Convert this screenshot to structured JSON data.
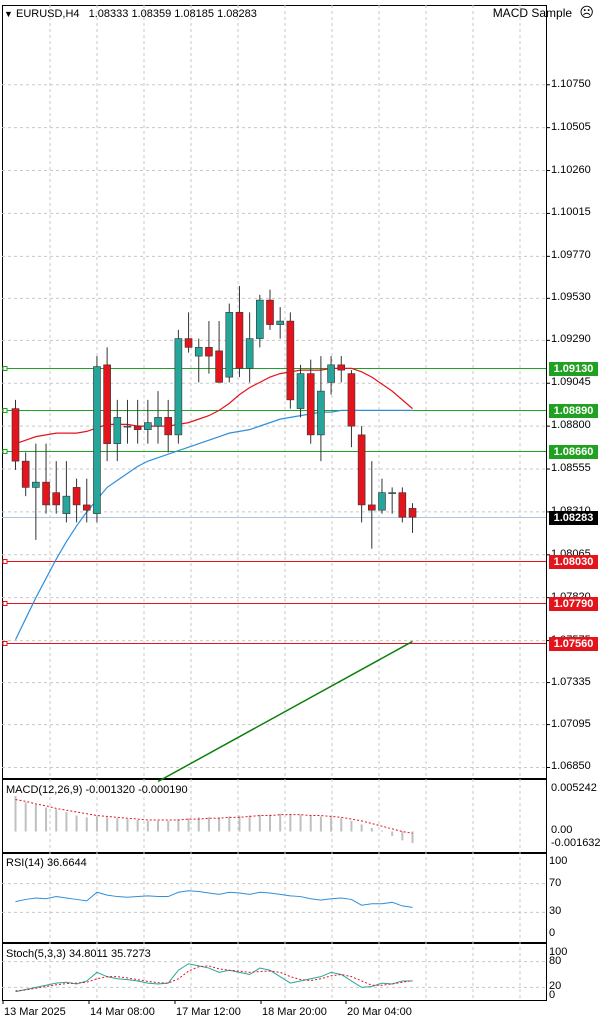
{
  "header": {
    "arrow": "▼",
    "symbol": "EURUSD,H4",
    "ohlc": "1.08333 1.08359 1.08185 1.08283",
    "ea_name": "MACD Sample",
    "ea_icon": "☹"
  },
  "price_axis": {
    "ticks": [
      "1.10750",
      "1.10505",
      "1.10260",
      "1.10015",
      "1.09770",
      "1.09530",
      "1.09290",
      "1.09045",
      "1.08800",
      "1.08555",
      "1.08310",
      "1.08065",
      "1.07820",
      "1.07575",
      "1.07335",
      "1.07095",
      "1.06850"
    ],
    "current_price": "1.08283",
    "levels": [
      {
        "label": "1.09130",
        "color": "#21a121"
      },
      {
        "label": "1.08890",
        "color": "#21a121"
      },
      {
        "label": "1.08660",
        "color": "#21a121"
      },
      {
        "label": "1.08030",
        "color": "#e3141c"
      },
      {
        "label": "1.07790",
        "color": "#e3141c"
      },
      {
        "label": "1.07560",
        "color": "#e3141c"
      }
    ]
  },
  "macd": {
    "label": "MACD(12,26,9) -0.001320 -0.000190",
    "ticks": [
      "0.005242",
      "0.00",
      "-0.001632"
    ]
  },
  "rsi": {
    "label": "RSI(14) 36.6644",
    "ticks": [
      "100",
      "70",
      "30",
      "0"
    ]
  },
  "stoch": {
    "label": "Stoch(5,3,3) 34.8011 35.7273",
    "ticks": [
      "100",
      "80",
      "20",
      "0"
    ]
  },
  "time_axis": [
    "13 Mar 2025",
    "14 Mar 08:00",
    "17 Mar 12:00",
    "18 Mar 20:00",
    "20 Mar 04:00"
  ],
  "colors": {
    "bull": "#26a69a",
    "bear": "#e3141c",
    "ma_fast": "#e3141c",
    "ma_slow": "#2f8fdb",
    "ma_long": "#0a7f0a",
    "grid": "#c8c8c8"
  },
  "chart_data": {
    "type": "candlestick",
    "ylim": [
      1.0675,
      1.11
    ],
    "candles": [
      {
        "o": 1.089,
        "h": 1.0895,
        "l": 1.0855,
        "c": 1.086
      },
      {
        "o": 1.086,
        "h": 1.0865,
        "l": 1.084,
        "c": 1.0845
      },
      {
        "o": 1.0845,
        "h": 1.087,
        "l": 1.0815,
        "c": 1.0848
      },
      {
        "o": 1.0848,
        "h": 1.087,
        "l": 1.083,
        "c": 1.0835
      },
      {
        "o": 1.0842,
        "h": 1.086,
        "l": 1.083,
        "c": 1.0835
      },
      {
        "o": 1.083,
        "h": 1.086,
        "l": 1.0825,
        "c": 1.084
      },
      {
        "o": 1.0845,
        "h": 1.085,
        "l": 1.0825,
        "c": 1.0835
      },
      {
        "o": 1.0835,
        "h": 1.085,
        "l": 1.0825,
        "c": 1.0832
      },
      {
        "o": 1.083,
        "h": 1.092,
        "l": 1.0825,
        "c": 1.0914
      },
      {
        "o": 1.0915,
        "h": 1.0925,
        "l": 1.086,
        "c": 1.087
      },
      {
        "o": 1.087,
        "h": 1.0895,
        "l": 1.086,
        "c": 1.0885
      },
      {
        "o": 1.088,
        "h": 1.0895,
        "l": 1.087,
        "c": 1.088
      },
      {
        "o": 1.088,
        "h": 1.0895,
        "l": 1.087,
        "c": 1.0878
      },
      {
        "o": 1.0878,
        "h": 1.0895,
        "l": 1.087,
        "c": 1.0882
      },
      {
        "o": 1.088,
        "h": 1.09,
        "l": 1.087,
        "c": 1.0885
      },
      {
        "o": 1.0885,
        "h": 1.0895,
        "l": 1.0865,
        "c": 1.0875
      },
      {
        "o": 1.0875,
        "h": 1.0935,
        "l": 1.087,
        "c": 1.093
      },
      {
        "o": 1.093,
        "h": 1.0945,
        "l": 1.0922,
        "c": 1.0925
      },
      {
        "o": 1.092,
        "h": 1.093,
        "l": 1.0905,
        "c": 1.0925
      },
      {
        "o": 1.0925,
        "h": 1.094,
        "l": 1.091,
        "c": 1.092
      },
      {
        "o": 1.0923,
        "h": 1.094,
        "l": 1.0905,
        "c": 1.0905
      },
      {
        "o": 1.0908,
        "h": 1.095,
        "l": 1.0905,
        "c": 1.0945
      },
      {
        "o": 1.0945,
        "h": 1.096,
        "l": 1.0908,
        "c": 1.0913
      },
      {
        "o": 1.0913,
        "h": 1.0945,
        "l": 1.0905,
        "c": 1.093
      },
      {
        "o": 1.093,
        "h": 1.0955,
        "l": 1.0925,
        "c": 1.0952
      },
      {
        "o": 1.0952,
        "h": 1.0958,
        "l": 1.0935,
        "c": 1.0938
      },
      {
        "o": 1.0938,
        "h": 1.0948,
        "l": 1.093,
        "c": 1.094
      },
      {
        "o": 1.094,
        "h": 1.0945,
        "l": 1.089,
        "c": 1.0895
      },
      {
        "o": 1.089,
        "h": 1.0915,
        "l": 1.0885,
        "c": 1.091
      },
      {
        "o": 1.091,
        "h": 1.0918,
        "l": 1.087,
        "c": 1.0875
      },
      {
        "o": 1.0875,
        "h": 1.092,
        "l": 1.086,
        "c": 1.09
      },
      {
        "o": 1.0905,
        "h": 1.092,
        "l": 1.0898,
        "c": 1.0915
      },
      {
        "o": 1.0915,
        "h": 1.092,
        "l": 1.0905,
        "c": 1.0912
      },
      {
        "o": 1.091,
        "h": 1.0912,
        "l": 1.0868,
        "c": 1.088
      },
      {
        "o": 1.0875,
        "h": 1.088,
        "l": 1.0825,
        "c": 1.0835
      },
      {
        "o": 1.0835,
        "h": 1.086,
        "l": 1.081,
        "c": 1.0832
      },
      {
        "o": 1.0832,
        "h": 1.085,
        "l": 1.083,
        "c": 1.0842
      },
      {
        "o": 1.0842,
        "h": 1.0845,
        "l": 1.083,
        "c": 1.0842
      },
      {
        "o": 1.0842,
        "h": 1.0845,
        "l": 1.0825,
        "c": 1.0828
      },
      {
        "o": 1.0833,
        "h": 1.0836,
        "l": 1.0819,
        "c": 1.0828
      }
    ],
    "ma_fast": [
      1.087,
      1.0872,
      1.0874,
      1.0875,
      1.0876,
      1.0876,
      1.0876,
      1.0877,
      1.0879,
      1.0881,
      1.0881,
      1.0881,
      1.088,
      1.088,
      1.088,
      1.088,
      1.0881,
      1.0882,
      1.0884,
      1.0886,
      1.0889,
      1.0893,
      1.0898,
      1.0902,
      1.0905,
      1.0908,
      1.091,
      1.0911,
      1.0912,
      1.0912,
      1.0912,
      1.0913,
      1.0913,
      1.0913,
      1.0911,
      1.0908,
      1.0904,
      1.09,
      1.0895,
      1.089
    ],
    "ma_slow": [
      1.0758,
      1.077,
      1.0782,
      1.0793,
      1.0804,
      1.0814,
      1.0823,
      1.0831,
      1.0838,
      1.0845,
      1.0849,
      1.0853,
      1.0857,
      1.086,
      1.0862,
      1.0864,
      1.0866,
      1.0868,
      1.087,
      1.0872,
      1.0874,
      1.0876,
      1.0877,
      1.0878,
      1.088,
      1.0882,
      1.0884,
      1.0885,
      1.0886,
      1.0887,
      1.0888,
      1.0888,
      1.0889,
      1.0889,
      1.0889,
      1.0889,
      1.0889,
      1.0889,
      1.0889,
      1.0889
    ],
    "ma_long_segment": {
      "from": {
        "index": 14,
        "price": 1.0677
      },
      "to": {
        "index": 39,
        "price": 1.0757
      }
    },
    "macd_hist": [
      0.004,
      0.0033,
      0.003,
      0.0027,
      0.0025,
      0.0022,
      0.0018,
      0.0016,
      0.0017,
      0.0016,
      0.0015,
      0.0014,
      0.0013,
      0.0012,
      0.0012,
      0.0012,
      0.0014,
      0.0015,
      0.0016,
      0.0016,
      0.0016,
      0.0017,
      0.0018,
      0.0018,
      0.0019,
      0.0019,
      0.002,
      0.002,
      0.0019,
      0.0018,
      0.0017,
      0.0016,
      0.0015,
      0.0012,
      0.0008,
      0.0004,
      0.0001,
      -0.0005,
      -0.001,
      -0.0013
    ],
    "macd_signal": [
      0.0036,
      0.0034,
      0.0031,
      0.0029,
      0.0026,
      0.0024,
      0.0022,
      0.002,
      0.0018,
      0.0017,
      0.0016,
      0.0015,
      0.0014,
      0.0013,
      0.0013,
      0.0013,
      0.0013,
      0.0014,
      0.0014,
      0.0015,
      0.0015,
      0.0016,
      0.0016,
      0.0017,
      0.0018,
      0.0018,
      0.0019,
      0.0019,
      0.0019,
      0.0018,
      0.0018,
      0.0017,
      0.0016,
      0.0014,
      0.0012,
      0.0009,
      0.0006,
      0.0003,
      0.0,
      -0.0002
    ],
    "rsi": [
      45,
      48,
      50,
      49,
      52,
      50,
      48,
      46,
      58,
      54,
      52,
      51,
      52,
      53,
      52,
      52,
      58,
      60,
      59,
      57,
      55,
      58,
      57,
      55,
      58,
      57,
      55,
      53,
      52,
      49,
      47,
      49,
      50,
      48,
      40,
      42,
      42,
      44,
      39,
      37
    ],
    "stoch_main": [
      10,
      15,
      20,
      25,
      30,
      32,
      28,
      35,
      55,
      45,
      40,
      38,
      35,
      30,
      28,
      30,
      60,
      75,
      70,
      65,
      55,
      60,
      55,
      50,
      65,
      60,
      45,
      30,
      35,
      40,
      45,
      55,
      50,
      35,
      20,
      22,
      30,
      28,
      35,
      35
    ],
    "stoch_signal": [
      12,
      14,
      18,
      22,
      26,
      29,
      30,
      32,
      40,
      45,
      45,
      42,
      38,
      34,
      31,
      30,
      40,
      58,
      68,
      70,
      63,
      60,
      58,
      55,
      57,
      58,
      55,
      45,
      38,
      36,
      40,
      47,
      50,
      45,
      35,
      25,
      25,
      28,
      32,
      36
    ]
  }
}
